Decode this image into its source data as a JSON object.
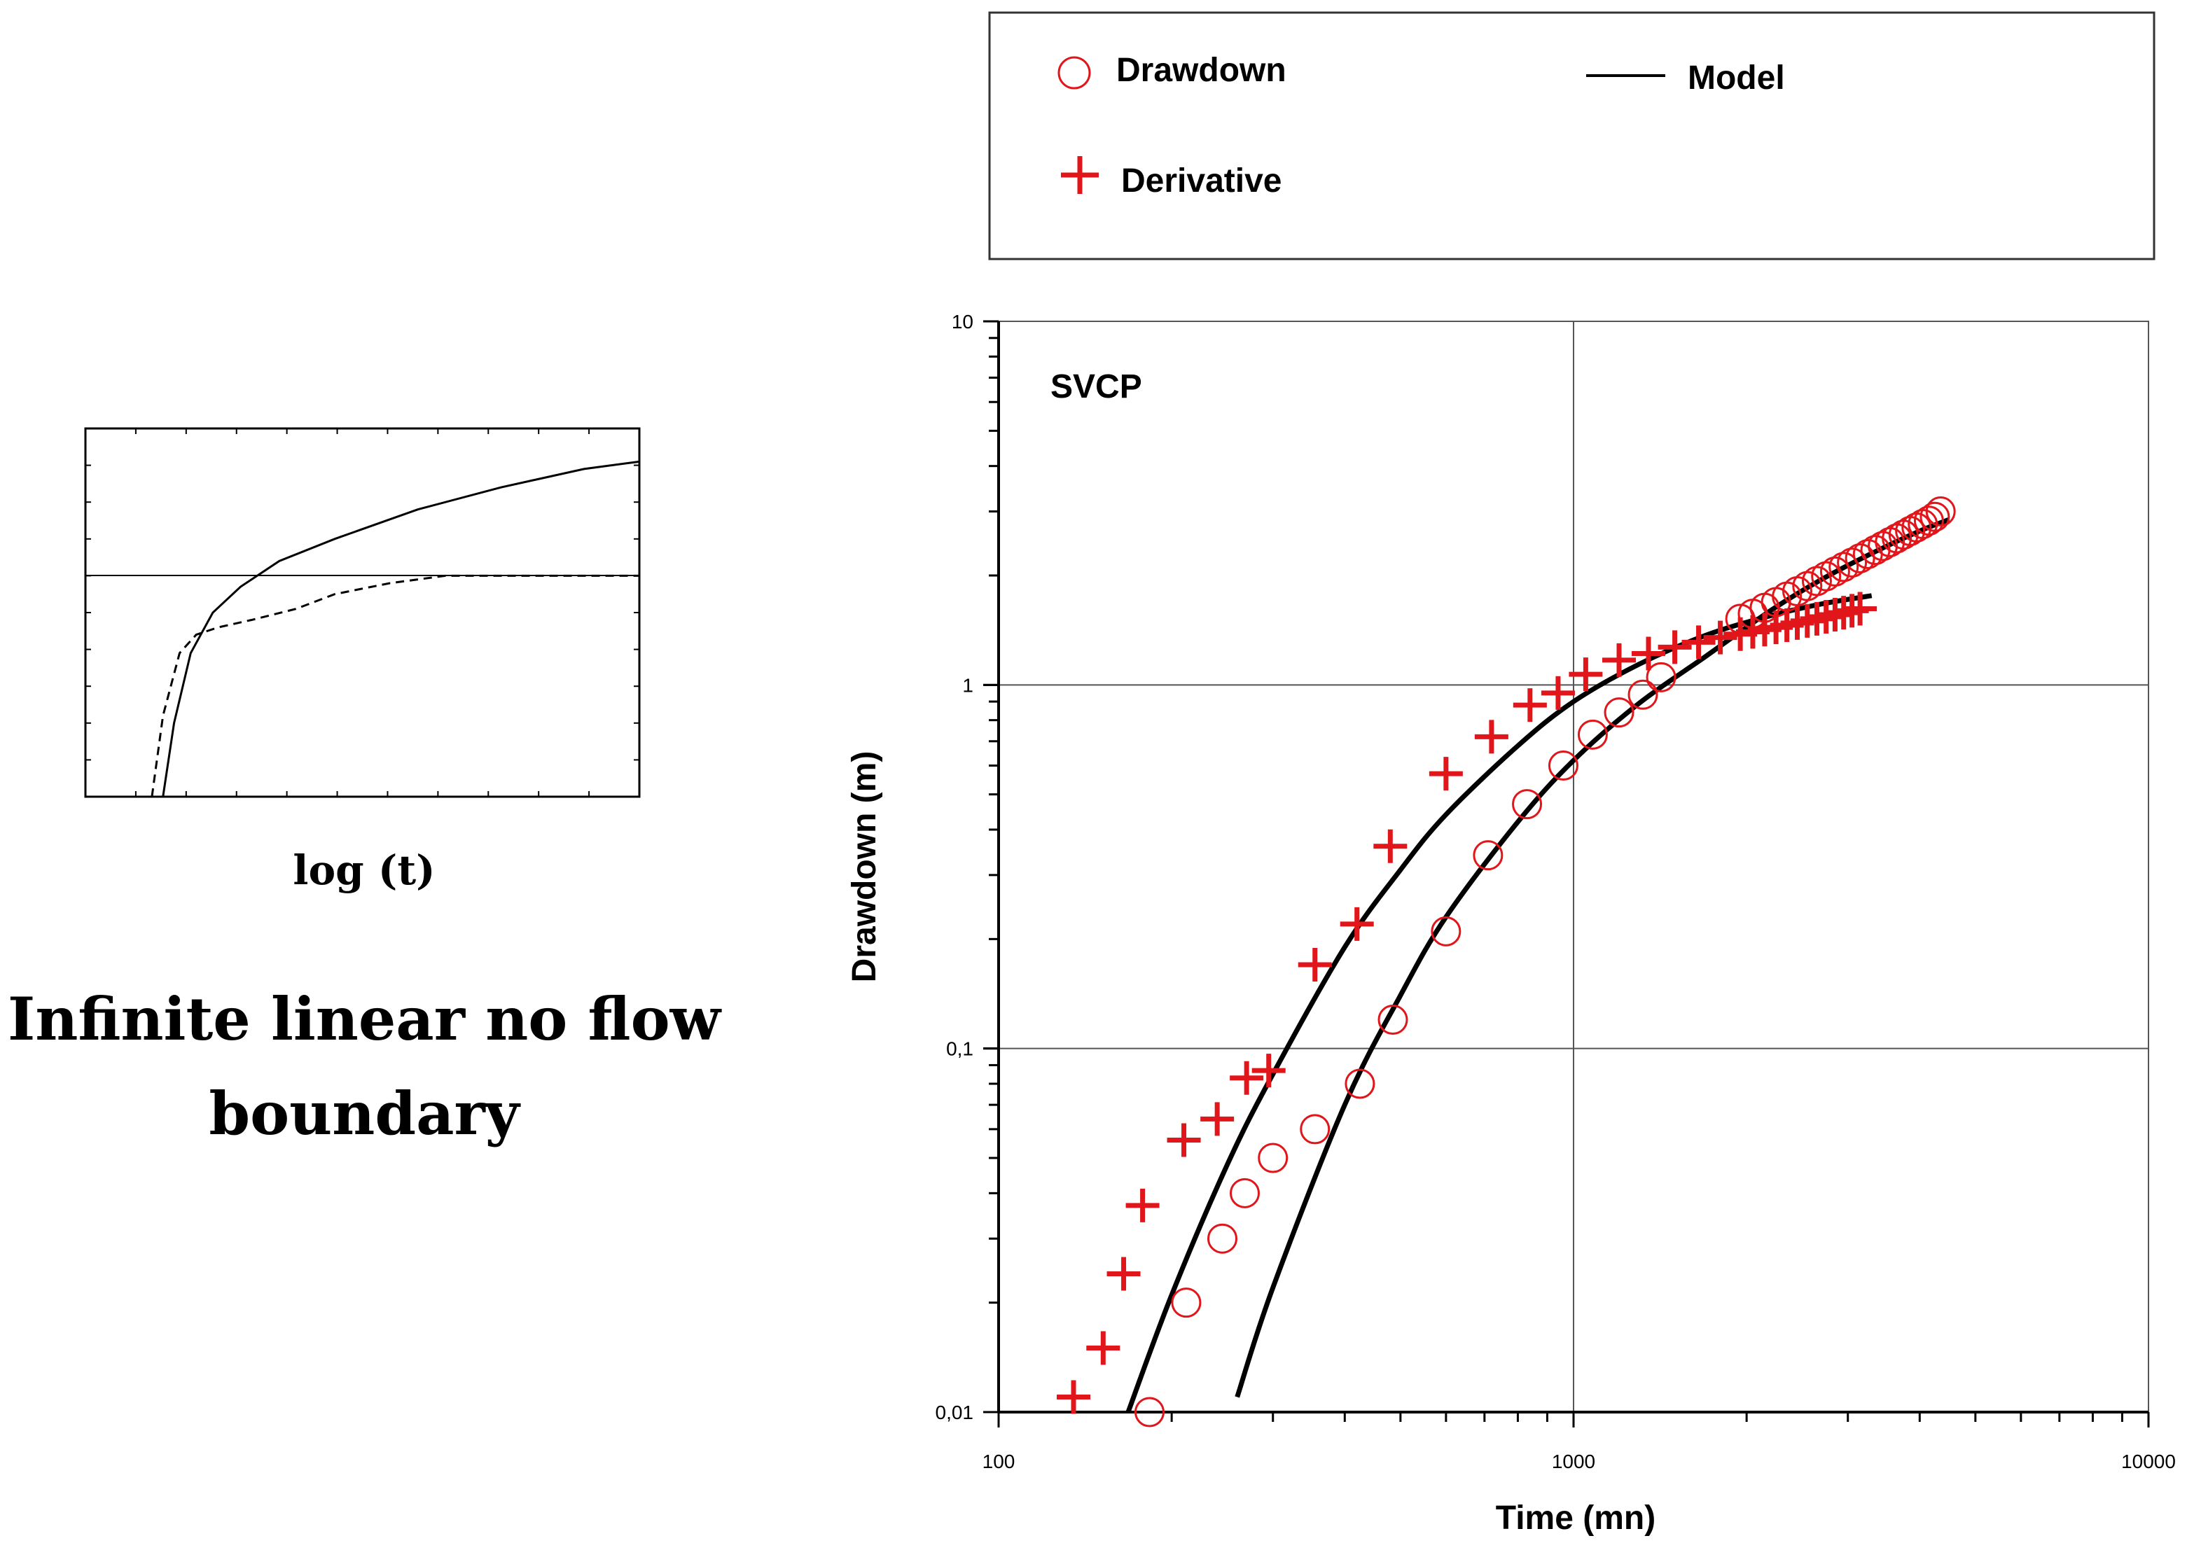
{
  "colors": {
    "drawdown": "#e0161b",
    "derivative": "#e0161b",
    "model": "#000000",
    "grid": "#555555",
    "axis": "#000000"
  },
  "inset": {
    "xlabel": "log (t)",
    "caption_line1": "Infinite linear no flow",
    "caption_line2": "boundary"
  },
  "legend": {
    "drawdown": "Drawdown",
    "derivative": "Derivative",
    "model": "Model"
  },
  "chart_data": [
    {
      "type": "line",
      "title": "",
      "xlabel": "log (t)",
      "ylabel": "",
      "xscale": "log",
      "yscale": "log",
      "xlim": [
        0,
        1
      ],
      "ylim": [
        0,
        1
      ],
      "series": [
        {
          "name": "solid",
          "style": "solid",
          "x": [
            0.14,
            0.16,
            0.19,
            0.23,
            0.28,
            0.35,
            0.45,
            0.6,
            0.75,
            0.9,
            1.0
          ],
          "y": [
            0.0,
            0.2,
            0.39,
            0.5,
            0.57,
            0.64,
            0.7,
            0.78,
            0.84,
            0.89,
            0.91
          ]
        },
        {
          "name": "dashed",
          "style": "dashed",
          "x": [
            0.12,
            0.14,
            0.17,
            0.2,
            0.24,
            0.3,
            0.38,
            0.45,
            0.55,
            0.65,
            0.8,
            1.0
          ],
          "y": [
            0.0,
            0.22,
            0.39,
            0.44,
            0.46,
            0.48,
            0.51,
            0.55,
            0.58,
            0.6,
            0.6,
            0.6
          ]
        }
      ]
    },
    {
      "type": "scatter",
      "title": "SVCP",
      "xlabel": "Time (mn)",
      "ylabel": "Drawdown (m)",
      "xscale": "log",
      "yscale": "log",
      "xlim": [
        100,
        10000
      ],
      "ylim": [
        0.01,
        10
      ],
      "xticks": [
        100,
        1000,
        10000
      ],
      "xtick_labels": [
        "100",
        "1000",
        "10000"
      ],
      "yticks": [
        0.01,
        0.1,
        1,
        10
      ],
      "ytick_labels": [
        "0,01",
        "0,1",
        "1",
        "10"
      ],
      "grid": true,
      "legend_position": "top, above plot",
      "series": [
        {
          "name": "Drawdown",
          "marker": "circle",
          "x": [
            183,
            212,
            245,
            268,
            300,
            355,
            425,
            485,
            600,
            710,
            830,
            960,
            1080,
            1200,
            1320,
            1420,
            1950,
            2050,
            2150,
            2250,
            2350,
            2450,
            2550,
            2650,
            2750,
            2850,
            2950,
            3050,
            3150,
            3250,
            3350,
            3450,
            3550,
            3650,
            3750,
            3850,
            3950,
            4050,
            4150,
            4250,
            4350
          ],
          "y": [
            0.01,
            0.02,
            0.03,
            0.04,
            0.05,
            0.06,
            0.08,
            0.12,
            0.21,
            0.34,
            0.47,
            0.6,
            0.73,
            0.84,
            0.94,
            1.05,
            1.52,
            1.57,
            1.63,
            1.69,
            1.75,
            1.81,
            1.87,
            1.93,
            1.99,
            2.05,
            2.11,
            2.17,
            2.23,
            2.29,
            2.35,
            2.41,
            2.47,
            2.53,
            2.59,
            2.65,
            2.71,
            2.77,
            2.83,
            2.9,
            3.0
          ]
        },
        {
          "name": "Derivative",
          "marker": "plus",
          "x": [
            135,
            152,
            165,
            178,
            210,
            240,
            270,
            295,
            355,
            420,
            480,
            600,
            720,
            840,
            940,
            1050,
            1200,
            1350,
            1500,
            1650,
            1800,
            1950,
            2050,
            2150,
            2250,
            2350,
            2450,
            2550,
            2650,
            2750,
            2850,
            2950,
            3050,
            3150
          ],
          "y": [
            0.011,
            0.015,
            0.024,
            0.037,
            0.056,
            0.064,
            0.083,
            0.087,
            0.17,
            0.22,
            0.36,
            0.57,
            0.72,
            0.88,
            0.95,
            1.07,
            1.17,
            1.22,
            1.27,
            1.31,
            1.35,
            1.38,
            1.4,
            1.42,
            1.44,
            1.46,
            1.48,
            1.5,
            1.52,
            1.54,
            1.56,
            1.58,
            1.6,
            1.62
          ]
        },
        {
          "name": "Model",
          "style": "line",
          "role": "derivative-fit",
          "x": [
            168,
            200,
            250,
            300,
            400,
            500,
            600,
            800,
            1000,
            1300,
            1700,
            2200,
            2700,
            3300
          ],
          "y": [
            0.01,
            0.021,
            0.048,
            0.085,
            0.19,
            0.31,
            0.44,
            0.68,
            0.9,
            1.14,
            1.37,
            1.55,
            1.67,
            1.76
          ]
        },
        {
          "name": "Model",
          "style": "line",
          "role": "drawdown-fit",
          "x": [
            260,
            300,
            400,
            500,
            600,
            800,
            1000,
            1300,
            1700,
            2200,
            2700,
            3300,
            4000,
            4500
          ],
          "y": [
            0.011,
            0.022,
            0.07,
            0.14,
            0.23,
            0.42,
            0.62,
            0.89,
            1.2,
            1.6,
            1.95,
            2.3,
            2.65,
            2.85
          ]
        }
      ]
    }
  ]
}
